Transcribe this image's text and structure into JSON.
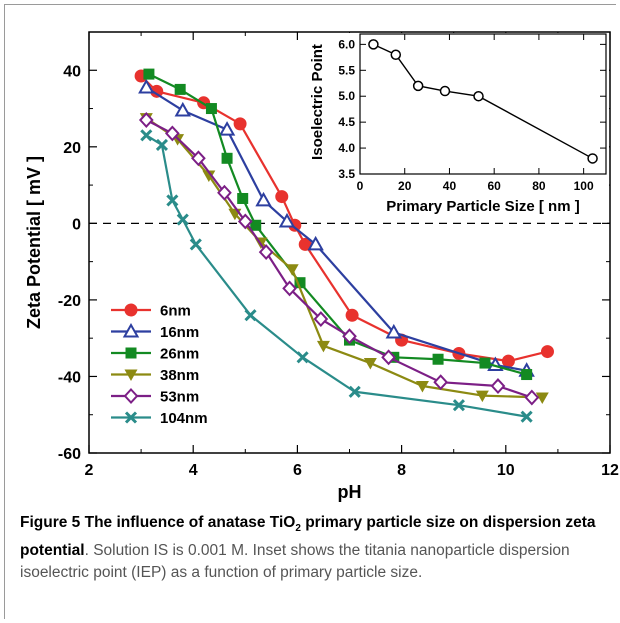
{
  "chart_data": [
    {
      "type": "line",
      "xlabel": "pH",
      "ylabel": "Zeta Potential [ mV ]",
      "xlim": [
        2,
        12
      ],
      "ylim": [
        -60,
        50
      ],
      "xticks": [
        2,
        4,
        6,
        8,
        10,
        12
      ],
      "yticks": [
        -60,
        -40,
        -20,
        0,
        20,
        40
      ],
      "zero_line": "dashed",
      "legend_position": "lower-left",
      "series": [
        {
          "name": "6nm",
          "color": "#e8322e",
          "marker": "circle-filled",
          "points": [
            [
              3.0,
              38.5
            ],
            [
              3.3,
              34.5
            ],
            [
              4.2,
              31.5
            ],
            [
              4.9,
              26.0
            ],
            [
              5.7,
              7.0
            ],
            [
              5.95,
              -0.5
            ],
            [
              6.15,
              -5.5
            ],
            [
              7.05,
              -24.0
            ],
            [
              8.0,
              -30.5
            ],
            [
              9.1,
              -34.0
            ],
            [
              10.05,
              -36.0
            ],
            [
              10.8,
              -33.5
            ]
          ]
        },
        {
          "name": "16nm",
          "color": "#2d3fa0",
          "marker": "triangle-open",
          "points": [
            [
              3.1,
              35.5
            ],
            [
              3.8,
              29.5
            ],
            [
              4.65,
              24.5
            ],
            [
              5.35,
              6.0
            ],
            [
              5.8,
              0.5
            ],
            [
              6.35,
              -5.5
            ],
            [
              7.85,
              -28.5
            ],
            [
              9.8,
              -37.0
            ],
            [
              10.4,
              -38.5
            ]
          ]
        },
        {
          "name": "26nm",
          "color": "#138a22",
          "marker": "square-filled",
          "points": [
            [
              3.15,
              39.0
            ],
            [
              3.75,
              35.0
            ],
            [
              4.35,
              30.0
            ],
            [
              4.65,
              17.0
            ],
            [
              4.95,
              6.5
            ],
            [
              5.2,
              -0.5
            ],
            [
              6.05,
              -15.5
            ],
            [
              7.0,
              -30.5
            ],
            [
              7.85,
              -35.0
            ],
            [
              8.7,
              -35.5
            ],
            [
              9.6,
              -36.5
            ],
            [
              10.4,
              -39.5
            ]
          ]
        },
        {
          "name": "38nm",
          "color": "#8c8a12",
          "marker": "triangle-down-filled",
          "points": [
            [
              3.1,
              27.5
            ],
            [
              3.7,
              22.0
            ],
            [
              4.3,
              12.5
            ],
            [
              4.8,
              2.5
            ],
            [
              5.3,
              -5.0
            ],
            [
              5.9,
              -12.0
            ],
            [
              6.5,
              -32.0
            ],
            [
              7.4,
              -36.5
            ],
            [
              8.4,
              -42.5
            ],
            [
              9.55,
              -45.0
            ],
            [
              10.7,
              -45.5
            ]
          ]
        },
        {
          "name": "53nm",
          "color": "#7c1f86",
          "marker": "diamond-open",
          "points": [
            [
              3.1,
              27.0
            ],
            [
              3.6,
              23.5
            ],
            [
              4.1,
              17.0
            ],
            [
              4.6,
              8.0
            ],
            [
              5.0,
              0.5
            ],
            [
              5.4,
              -7.5
            ],
            [
              5.85,
              -17.0
            ],
            [
              6.45,
              -25.0
            ],
            [
              7.0,
              -29.5
            ],
            [
              7.75,
              -35.0
            ],
            [
              8.75,
              -41.5
            ],
            [
              9.85,
              -42.5
            ],
            [
              10.5,
              -45.5
            ]
          ]
        },
        {
          "name": "104nm",
          "color": "#2a8c8a",
          "marker": "x-cross",
          "points": [
            [
              3.1,
              23.0
            ],
            [
              3.4,
              20.5
            ],
            [
              3.6,
              6.0
            ],
            [
              3.8,
              1.0
            ],
            [
              4.05,
              -5.5
            ],
            [
              5.1,
              -24.0
            ],
            [
              6.1,
              -35.0
            ],
            [
              7.1,
              -44.0
            ],
            [
              9.1,
              -47.5
            ],
            [
              10.4,
              -50.5
            ]
          ]
        }
      ]
    },
    {
      "type": "line",
      "inset": true,
      "xlabel": "Primary Particle Size [ nm ]",
      "ylabel": "Isoelectric Point",
      "xlim": [
        0,
        110
      ],
      "ylim": [
        3.5,
        6.2
      ],
      "xticks": [
        0,
        20,
        40,
        60,
        80,
        100
      ],
      "yticks": [
        3.5,
        4.0,
        4.5,
        5.0,
        5.5,
        6.0
      ],
      "series": [
        {
          "color": "#000000",
          "marker": "circle-open",
          "points": [
            [
              6,
              6.0
            ],
            [
              16,
              5.8
            ],
            [
              26,
              5.2
            ],
            [
              38,
              5.1
            ],
            [
              53,
              5.0
            ],
            [
              104,
              3.8
            ]
          ]
        }
      ]
    }
  ],
  "main_tick_labels": {
    "x": [
      "2",
      "4",
      "6",
      "8",
      "10",
      "12"
    ],
    "y": [
      "-60",
      "-40",
      "-20",
      "0",
      "20",
      "40"
    ]
  },
  "inset_tick_labels": {
    "x": [
      "0",
      "20",
      "40",
      "60",
      "80",
      "100"
    ],
    "y": [
      "3.5",
      "4.0",
      "4.5",
      "5.0",
      "5.5",
      "6.0"
    ]
  },
  "caption": {
    "bold_prefix": "Figure 5 The influence of anatase TiO",
    "bold_sub": "2",
    "bold_suffix": " primary particle size on dispersion zeta potential",
    "rest": ". Solution IS is 0.001 M. Inset shows the titania nanoparticle dispersion isoelectric point (IEP) as a function of primary particle size."
  }
}
